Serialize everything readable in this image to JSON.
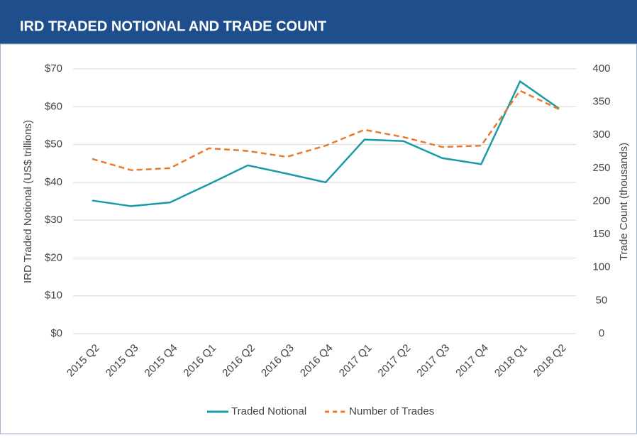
{
  "chart_data": {
    "type": "line",
    "title": "IRD TRADED NOTIONAL AND TRADE COUNT",
    "categories": [
      "2015 Q2",
      "2015 Q3",
      "2015 Q4",
      "2016 Q1",
      "2016 Q2",
      "2016 Q3",
      "2016 Q4",
      "2017 Q1",
      "2017 Q2",
      "2017 Q3",
      "2017 Q4",
      "2018 Q1",
      "2018 Q2"
    ],
    "series": [
      {
        "name": "Traded Notional",
        "color": "#1a9aa8",
        "values": [
          35.2,
          33.7,
          34.7,
          39.5,
          44.5,
          42.3,
          40.0,
          51.3,
          50.9,
          46.4,
          44.8,
          66.7,
          59.5
        ]
      },
      {
        "name": "Number of Trades",
        "color": "#e87a2e",
        "axis": "y2",
        "dashed": true,
        "values": [
          264,
          247,
          250,
          280,
          276,
          267,
          284,
          308,
          297,
          282,
          284,
          367,
          339
        ]
      }
    ],
    "ylabel": "IRD Traded Notional (US$ trillions)",
    "y2label": "Trade Count (thousands)",
    "ylim": [
      0,
      70
    ],
    "yticks": [
      {
        "value": 0,
        "label": "$0"
      },
      {
        "value": 10,
        "label": "$10"
      },
      {
        "value": 20,
        "label": "$20"
      },
      {
        "value": 30,
        "label": "$30"
      },
      {
        "value": 40,
        "label": "$40"
      },
      {
        "value": 50,
        "label": "$50"
      },
      {
        "value": 60,
        "label": "$60"
      },
      {
        "value": 70,
        "label": "$70"
      }
    ],
    "y2lim": [
      0,
      400
    ],
    "y2ticks": [
      0,
      50,
      100,
      150,
      200,
      250,
      300,
      350,
      400
    ],
    "grid": true,
    "legend": "bottom"
  }
}
